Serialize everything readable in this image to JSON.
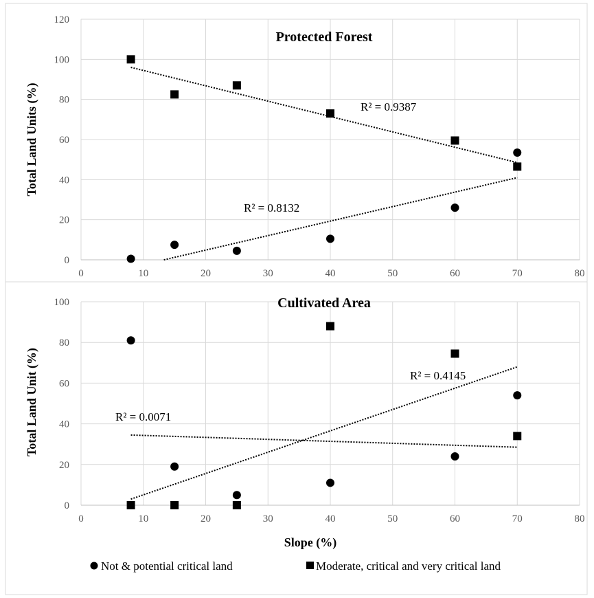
{
  "chart_data": [
    {
      "type": "scatter",
      "title": "Protected Forest",
      "xlabel": "",
      "ylabel": "Total Land Units (%)",
      "xlim": [
        0,
        80
      ],
      "ylim": [
        0,
        120
      ],
      "xticks": [
        0,
        10,
        20,
        30,
        40,
        50,
        60,
        70,
        80
      ],
      "yticks": [
        0,
        20,
        40,
        60,
        80,
        100,
        120
      ],
      "grid": true,
      "series": [
        {
          "name": "Not & potential critical land",
          "marker": "circle",
          "x": [
            8,
            15,
            25,
            40,
            60,
            70
          ],
          "y": [
            0.5,
            7.5,
            4.5,
            10.5,
            26,
            53.5
          ],
          "trendline": {
            "from": [
              13.3,
              0
            ],
            "to": [
              70,
              41
            ],
            "r2_label": "R² = 0.8132"
          }
        },
        {
          "name": "Moderate, critical and very critical land",
          "marker": "square",
          "x": [
            8,
            15,
            25,
            40,
            60,
            70
          ],
          "y": [
            100,
            82.5,
            87,
            73,
            59.5,
            46.5
          ],
          "trendline": {
            "from": [
              8,
              96
            ],
            "to": [
              70,
              48.5
            ],
            "r2_label": "R² = 0.9387"
          }
        }
      ]
    },
    {
      "type": "scatter",
      "title": "Cultivated Area",
      "xlabel": "Slope (%)",
      "ylabel": "Total Land Unit (%)",
      "xlim": [
        0,
        80
      ],
      "ylim": [
        0,
        100
      ],
      "xticks": [
        0,
        10,
        20,
        30,
        40,
        50,
        60,
        70,
        80
      ],
      "yticks": [
        0,
        20,
        40,
        60,
        80,
        100
      ],
      "grid": true,
      "series": [
        {
          "name": "Not & potential critical land",
          "marker": "circle",
          "x": [
            8,
            15,
            25,
            40,
            60,
            70
          ],
          "y": [
            81,
            19,
            5,
            11,
            24,
            54
          ],
          "trendline": {
            "from": [
              8,
              34.5
            ],
            "to": [
              70,
              28.5
            ],
            "r2_label": "R² = 0.0071"
          }
        },
        {
          "name": "Moderate, critical and very critical land",
          "marker": "square",
          "x": [
            8,
            15,
            25,
            40,
            60,
            70
          ],
          "y": [
            0,
            0,
            0,
            88,
            74.5,
            34
          ],
          "trendline": {
            "from": [
              8,
              3
            ],
            "to": [
              70,
              68
            ],
            "r2_label": "R² = 0.4145"
          }
        }
      ]
    }
  ],
  "legend": {
    "placement": "bottom",
    "items": [
      {
        "label": "Not & potential critical land",
        "marker": "circle"
      },
      {
        "label": "Moderate, critical and very critical land",
        "marker": "square"
      }
    ]
  }
}
